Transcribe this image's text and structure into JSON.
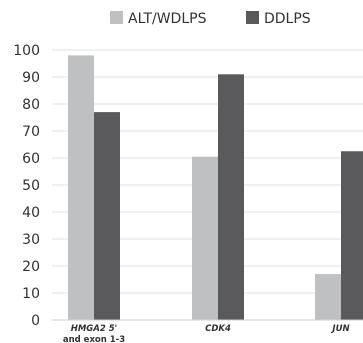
{
  "chart_data": {
    "type": "bar",
    "title": "",
    "xlabel": "",
    "ylabel": "",
    "ylim": [
      0,
      100
    ],
    "yticks": [
      0,
      10,
      20,
      30,
      40,
      50,
      60,
      70,
      80,
      90,
      100
    ],
    "grid": true,
    "legend_position": "top",
    "categories": [
      {
        "label_lines": [
          "HMGA2 5'",
          "and exon 1-3"
        ],
        "italic_lines": [
          true,
          false
        ]
      },
      {
        "label_lines": [
          "CDK4"
        ],
        "italic_lines": [
          true
        ]
      },
      {
        "label_lines": [
          "JUN"
        ],
        "italic_lines": [
          true
        ]
      }
    ],
    "series": [
      {
        "name": "ALT/WDLPS",
        "color": "#bfc0c2",
        "values": [
          98,
          60.5,
          17
        ]
      },
      {
        "name": "DDLPS",
        "color": "#5a5a5c",
        "values": [
          77,
          91,
          62.5
        ]
      }
    ]
  }
}
